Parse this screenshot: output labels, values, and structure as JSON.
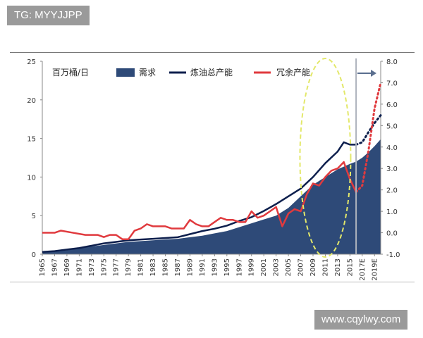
{
  "watermarks": {
    "tg": "TG: MYYJJPP",
    "site": "www.cqylwy.com"
  },
  "chart_data": {
    "type": "area",
    "unit_label": "百万桶/日",
    "left_axis": {
      "ticks": [
        "0",
        "5",
        "10",
        "15",
        "20",
        "25"
      ],
      "range": [
        0,
        25
      ]
    },
    "right_axis": {
      "ticks": [
        "-1.0",
        "0.0",
        "1.0",
        "2.0",
        "3.0",
        "4.0",
        "5.0",
        "6.0",
        "7.0",
        "8.0"
      ],
      "range": [
        -1,
        8
      ]
    },
    "x_ticks": [
      "1965",
      "1967",
      "1969",
      "1971",
      "1973",
      "1975",
      "1977",
      "1979",
      "1981",
      "1983",
      "1985",
      "1987",
      "1989",
      "1991",
      "1993",
      "1995",
      "1997",
      "1999",
      "2001",
      "2003",
      "2005",
      "2007",
      "2009",
      "2011",
      "2013",
      "2015",
      "2017E",
      "2019E"
    ],
    "x_range": [
      1965,
      2020
    ],
    "forecast_start": 2016,
    "colors": {
      "demand": "#2e4a78",
      "capacity": "#0d1f4d",
      "spare": "#e03a3e",
      "ellipse": "#e3e86a",
      "divider": "#aeb3bd",
      "arrow": "#5b6f8f"
    },
    "series": [
      {
        "name": "需求",
        "axis": "left",
        "x": [
          1965,
          1967,
          1969,
          1971,
          1973,
          1975,
          1977,
          1979,
          1981,
          1983,
          1985,
          1987,
          1989,
          1991,
          1993,
          1995,
          1997,
          1999,
          2001,
          2003,
          2005,
          2007,
          2009,
          2011,
          2013,
          2015,
          2016,
          2017,
          2018,
          2019,
          2020
        ],
        "values": [
          0.3,
          0.4,
          0.5,
          0.8,
          1.0,
          1.2,
          1.4,
          1.6,
          1.7,
          1.8,
          1.9,
          2.0,
          2.2,
          2.4,
          2.7,
          3.0,
          3.5,
          4.0,
          4.5,
          5.0,
          6.0,
          7.5,
          9.0,
          10.0,
          11.0,
          11.7,
          12.0,
          12.5,
          13.2,
          14.0,
          14.9
        ]
      },
      {
        "name": "炼油总产能",
        "axis": "left",
        "x": [
          1965,
          1967,
          1969,
          1971,
          1973,
          1975,
          1977,
          1979,
          1981,
          1983,
          1985,
          1987,
          1989,
          1991,
          1993,
          1995,
          1997,
          1999,
          2001,
          2003,
          2005,
          2007,
          2009,
          2011,
          2013,
          2014,
          2015,
          2016
        ],
        "values": [
          0.3,
          0.4,
          0.6,
          0.8,
          1.1,
          1.4,
          1.6,
          1.8,
          1.9,
          2.0,
          2.1,
          2.2,
          2.6,
          3.0,
          3.3,
          3.7,
          4.3,
          4.8,
          5.6,
          6.5,
          7.5,
          8.5,
          10.0,
          11.8,
          13.3,
          14.5,
          14.2,
          14.2
        ],
        "forecast_x": [
          2016,
          2017,
          2018,
          2019,
          2020
        ],
        "forecast_values": [
          14.2,
          14.5,
          15.8,
          17.0,
          18.0
        ]
      },
      {
        "name": "冗余产能",
        "axis": "right",
        "x": [
          1965,
          1967,
          1968,
          1970,
          1972,
          1973,
          1974,
          1975,
          1976,
          1977,
          1978,
          1979,
          1980,
          1981,
          1982,
          1983,
          1984,
          1985,
          1986,
          1987,
          1988,
          1989,
          1990,
          1991,
          1992,
          1993,
          1994,
          1995,
          1996,
          1997,
          1998,
          1999,
          2000,
          2001,
          2002,
          2003,
          2004,
          2005,
          2006,
          2007,
          2008,
          2009,
          2010,
          2011,
          2012,
          2013,
          2014,
          2015,
          2016
        ],
        "values": [
          0.0,
          0.0,
          0.1,
          0.0,
          -0.1,
          -0.1,
          -0.1,
          -0.2,
          -0.1,
          -0.1,
          -0.3,
          -0.3,
          0.1,
          0.2,
          0.4,
          0.3,
          0.3,
          0.3,
          0.2,
          0.2,
          0.2,
          0.6,
          0.4,
          0.3,
          0.3,
          0.5,
          0.7,
          0.6,
          0.6,
          0.5,
          0.5,
          1.0,
          0.7,
          0.8,
          1.0,
          1.2,
          0.3,
          0.9,
          1.1,
          1.0,
          1.8,
          2.3,
          2.2,
          2.6,
          2.9,
          3.0,
          3.3,
          2.5,
          1.9
        ],
        "forecast_x": [
          2016,
          2017,
          2018,
          2019,
          2020
        ],
        "forecast_values": [
          1.9,
          2.2,
          3.8,
          5.8,
          7.0
        ]
      }
    ],
    "legend": {
      "position": "top"
    },
    "grid": false,
    "annotations": [
      "yellow dashed ellipse highlighting 2007–2015",
      "vertical divider at 2016 separating forecast",
      "arrow pointing to right axis"
    ]
  }
}
